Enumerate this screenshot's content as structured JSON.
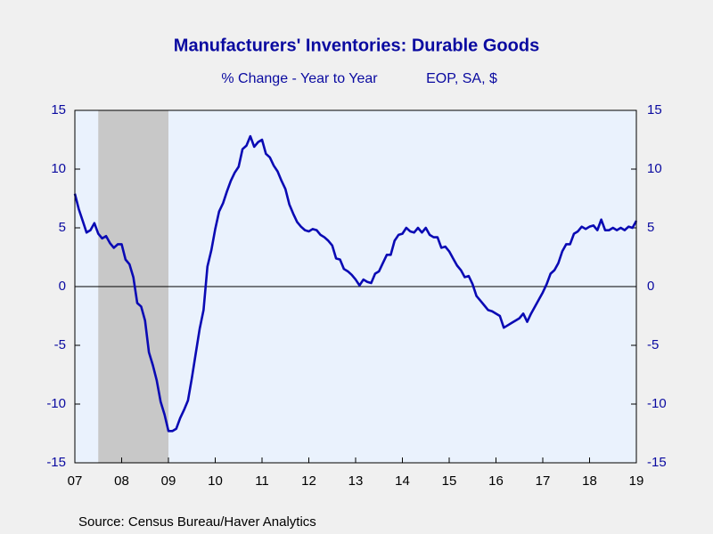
{
  "chart_data": {
    "type": "line",
    "title": "Manufacturers' Inventories: Durable Goods",
    "subtitle": "% Change - Year to Year",
    "subtitle_right": "EOP, SA, $",
    "source": "Source:  Census Bureau/Haver Analytics",
    "x": [
      2007.0,
      2007.083,
      2007.167,
      2007.25,
      2007.333,
      2007.417,
      2007.5,
      2007.583,
      2007.667,
      2007.75,
      2007.833,
      2007.917,
      2008.0,
      2008.083,
      2008.167,
      2008.25,
      2008.333,
      2008.417,
      2008.5,
      2008.583,
      2008.667,
      2008.75,
      2008.833,
      2008.917,
      2009.0,
      2009.083,
      2009.167,
      2009.25,
      2009.333,
      2009.417,
      2009.5,
      2009.583,
      2009.667,
      2009.75,
      2009.833,
      2009.917,
      2010.0,
      2010.083,
      2010.167,
      2010.25,
      2010.333,
      2010.417,
      2010.5,
      2010.583,
      2010.667,
      2010.75,
      2010.833,
      2010.917,
      2011.0,
      2011.083,
      2011.167,
      2011.25,
      2011.333,
      2011.417,
      2011.5,
      2011.583,
      2011.667,
      2011.75,
      2011.833,
      2011.917,
      2012.0,
      2012.083,
      2012.167,
      2012.25,
      2012.333,
      2012.417,
      2012.5,
      2012.583,
      2012.667,
      2012.75,
      2012.833,
      2012.917,
      2013.0,
      2013.083,
      2013.167,
      2013.25,
      2013.333,
      2013.417,
      2013.5,
      2013.583,
      2013.667,
      2013.75,
      2013.833,
      2013.917,
      2014.0,
      2014.083,
      2014.167,
      2014.25,
      2014.333,
      2014.417,
      2014.5,
      2014.583,
      2014.667,
      2014.75,
      2014.833,
      2014.917,
      2015.0,
      2015.083,
      2015.167,
      2015.25,
      2015.333,
      2015.417,
      2015.5,
      2015.583,
      2015.667,
      2015.75,
      2015.833,
      2015.917,
      2016.0,
      2016.083,
      2016.167,
      2016.25,
      2016.333,
      2016.417,
      2016.5,
      2016.583,
      2016.667,
      2016.75,
      2016.833,
      2016.917,
      2017.0,
      2017.083,
      2017.167,
      2017.25,
      2017.333,
      2017.417,
      2017.5,
      2017.583,
      2017.667,
      2017.75,
      2017.833,
      2017.917,
      2018.0,
      2018.083,
      2018.167,
      2018.25,
      2018.333,
      2018.417,
      2018.5,
      2018.583,
      2018.667,
      2018.75,
      2018.833,
      2018.917,
      2019.0
    ],
    "series": [
      {
        "name": "Manufacturers' Inventories: Durable Goods",
        "color": "#0a0ab4",
        "values": [
          7.9,
          6.6,
          5.6,
          4.6,
          4.8,
          5.4,
          4.5,
          4.1,
          4.3,
          3.7,
          3.3,
          3.6,
          3.6,
          2.3,
          1.9,
          0.8,
          -1.4,
          -1.7,
          -2.9,
          -5.6,
          -6.7,
          -8.0,
          -9.8,
          -10.9,
          -12.3,
          -12.3,
          -12.1,
          -11.2,
          -10.5,
          -9.7,
          -7.8,
          -5.7,
          -3.6,
          -2.0,
          1.7,
          3.1,
          4.9,
          6.4,
          7.1,
          8.1,
          9.0,
          9.7,
          10.2,
          11.7,
          12.0,
          12.8,
          11.9,
          12.3,
          12.5,
          11.3,
          11.0,
          10.3,
          9.8,
          9.0,
          8.3,
          7.0,
          6.2,
          5.5,
          5.1,
          4.8,
          4.7,
          4.9,
          4.8,
          4.4,
          4.2,
          3.9,
          3.5,
          2.4,
          2.3,
          1.5,
          1.3,
          1.0,
          0.6,
          0.1,
          0.6,
          0.4,
          0.3,
          1.1,
          1.3,
          2.0,
          2.7,
          2.7,
          3.9,
          4.4,
          4.5,
          5.0,
          4.7,
          4.6,
          5.0,
          4.6,
          5.0,
          4.4,
          4.2,
          4.2,
          3.3,
          3.4,
          3.0,
          2.4,
          1.8,
          1.4,
          0.8,
          0.9,
          0.2,
          -0.8,
          -1.2,
          -1.6,
          -2.0,
          -2.1,
          -2.3,
          -2.5,
          -3.5,
          -3.3,
          -3.1,
          -2.9,
          -2.7,
          -2.3,
          -3.0,
          -2.3,
          -1.7,
          -1.1,
          -0.5,
          0.2,
          1.1,
          1.4,
          2.0,
          3.0,
          3.6,
          3.6,
          4.5,
          4.7,
          5.1,
          4.9,
          5.1,
          5.2,
          4.8,
          5.7,
          4.8,
          4.8,
          5.0,
          4.8,
          5.0,
          4.8,
          5.1,
          5.0,
          5.6
        ]
      }
    ],
    "xlim": [
      2007,
      2019
    ],
    "xticks": [
      {
        "value": 2007,
        "label": "07"
      },
      {
        "value": 2008,
        "label": "08"
      },
      {
        "value": 2009,
        "label": "09"
      },
      {
        "value": 2010,
        "label": "10"
      },
      {
        "value": 2011,
        "label": "11"
      },
      {
        "value": 2012,
        "label": "12"
      },
      {
        "value": 2013,
        "label": "13"
      },
      {
        "value": 2014,
        "label": "14"
      },
      {
        "value": 2015,
        "label": "15"
      },
      {
        "value": 2016,
        "label": "16"
      },
      {
        "value": 2017,
        "label": "17"
      },
      {
        "value": 2018,
        "label": "18"
      },
      {
        "value": 2019,
        "label": "19"
      }
    ],
    "ylim": [
      -15,
      15
    ],
    "yticks": [
      -15,
      -10,
      -5,
      0,
      5,
      10,
      15
    ],
    "reference_line": 0,
    "recessions": [
      [
        2007.5,
        2009.0
      ]
    ],
    "recession_color": "#c8c8c8",
    "plot_background": "#eaf2fd"
  }
}
